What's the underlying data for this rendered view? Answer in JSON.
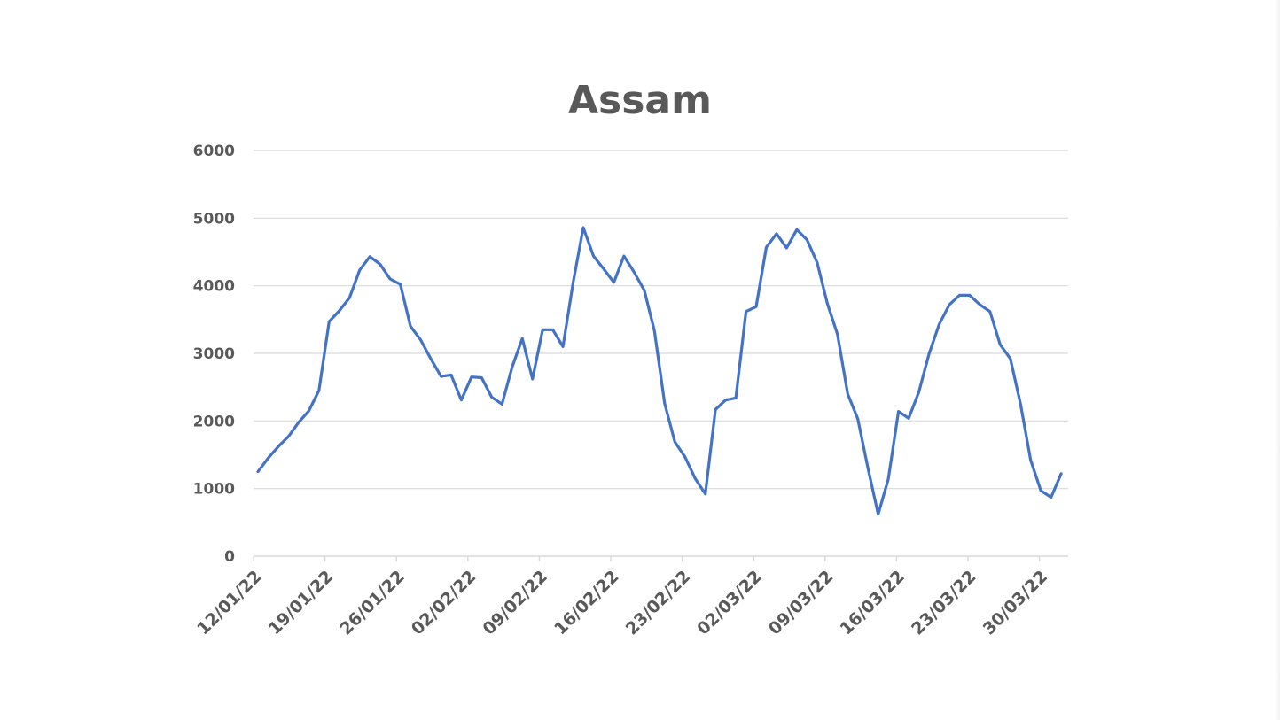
{
  "chart_data": {
    "type": "line",
    "title": "Assam",
    "xlabel": "",
    "ylabel": "",
    "ylim": [
      0,
      6000
    ],
    "yticks": [
      0,
      1000,
      2000,
      3000,
      4000,
      5000,
      6000
    ],
    "x_start": "12/01/22",
    "x_tick_labels": [
      "12/01/22",
      "19/01/22",
      "26/01/22",
      "02/02/22",
      "09/02/22",
      "16/02/22",
      "23/02/22",
      "02/03/22",
      "09/03/22",
      "16/03/22",
      "23/03/22",
      "30/03/22"
    ],
    "grid": true,
    "legend": "none",
    "line_color": "#4472C4",
    "series": [
      {
        "values": [
          1250,
          1450,
          1620,
          1770,
          1980,
          2150,
          2450,
          3470,
          3630,
          3820,
          4230,
          4430,
          4320,
          4100,
          4020,
          3400,
          3200,
          2920,
          2660,
          2680,
          2310,
          2650,
          2640,
          2350,
          2250,
          2800,
          3220,
          2620,
          3350,
          3350,
          3100,
          4050,
          4860,
          4440,
          4250,
          4050,
          4440,
          4200,
          3930,
          3330,
          2260,
          1690,
          1470,
          1150,
          920,
          2170,
          2310,
          2340,
          3620,
          3690,
          4570,
          4770,
          4560,
          4830,
          4680,
          4340,
          3740,
          3280,
          2400,
          2030,
          1300,
          620,
          1140,
          2140,
          2040,
          2430,
          2990,
          3430,
          3720,
          3860,
          3860,
          3720,
          3620,
          3130,
          2920,
          2250,
          1420,
          970,
          870,
          1220
        ]
      }
    ]
  }
}
